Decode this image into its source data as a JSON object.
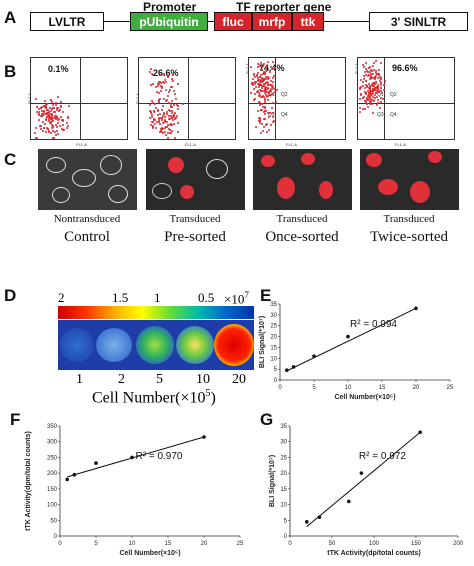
{
  "panel_labels": {
    "A": "A",
    "B": "B",
    "C": "C",
    "D": "D",
    "E": "E",
    "F": "F",
    "G": "G"
  },
  "construct": {
    "promoter_header": "Promoter",
    "reporter_header": "TF reporter gene",
    "ltr5": "LVLTR",
    "promoter": "pUbiquitin",
    "gene1": "fluc",
    "gene2": "mrfp",
    "gene3": "ttk",
    "ltr3": "3' SINLTR",
    "colors": {
      "promoter": "#3fae3f",
      "reporter": "#d8232a"
    }
  },
  "flow": [
    {
      "percent": "0.1%",
      "y_axis": "FL2-A",
      "x_axis": "FL1-A",
      "quadrants": []
    },
    {
      "percent": "26.6%",
      "y_axis": "FL2-A",
      "x_axis": "FL1-A",
      "quadrants": []
    },
    {
      "percent": "74.4%",
      "y_axis": "FL2-A",
      "x_axis": "FL1-A",
      "quadrants": [
        "Q1",
        "Q2",
        "Q3",
        "Q4"
      ]
    },
    {
      "percent": "96.6%",
      "y_axis": "FL2-A",
      "x_axis": "FL1-A",
      "quadrants": [
        "Q1",
        "Q2",
        "Q3",
        "Q4"
      ]
    }
  ],
  "micro": [
    {
      "line1": "Nontransduced",
      "line2": "Control"
    },
    {
      "line1": "Transduced",
      "line2": "Pre-sorted"
    },
    {
      "line1": "Transduced",
      "line2": "Once-sorted"
    },
    {
      "line1": "Transduced",
      "line2": "Twice-sorted"
    }
  ],
  "bli": {
    "scale_ticks": [
      "2",
      "1.5",
      "1",
      "0.5"
    ],
    "scale_unit": "×10",
    "scale_exp": "7",
    "well_labels": [
      "1",
      "2",
      "5",
      "10",
      "20"
    ],
    "xlabel": "Cell Number(×10",
    "xlabel_exp": "5",
    "xlabel_close": ")"
  },
  "chart_data": [
    {
      "panel": "E",
      "type": "scatter",
      "xlabel": "Cell Number(×10⁵)",
      "ylabel": "BLI Signal(*10⁷)",
      "annotation": "R² = 0.994",
      "x_ticks": [
        "0",
        "5",
        "10",
        "15",
        "20",
        "25"
      ],
      "y_ticks": [
        "0",
        "5",
        "10",
        "15",
        "20",
        "25",
        "30",
        "35"
      ],
      "xlim": [
        0,
        25
      ],
      "ylim": [
        0,
        35
      ],
      "points": [
        [
          1,
          4.5
        ],
        [
          2,
          6
        ],
        [
          5,
          11
        ],
        [
          10,
          20
        ],
        [
          20,
          33
        ]
      ],
      "fit": [
        [
          1,
          4.2
        ],
        [
          20,
          33
        ]
      ]
    },
    {
      "panel": "F",
      "type": "scatter",
      "xlabel": "Cell Number(×10⁵)",
      "ylabel": "tTK Activity(dpm/total counts)",
      "annotation": "R² = 0.970",
      "x_ticks": [
        "0",
        "5",
        "10",
        "15",
        "20",
        "25"
      ],
      "y_ticks": [
        "0",
        "50",
        "100",
        "150",
        "200",
        "250",
        "300",
        "350"
      ],
      "xlim": [
        0,
        25
      ],
      "ylim": [
        0,
        350
      ],
      "points": [
        [
          1,
          180
        ],
        [
          2,
          195
        ],
        [
          5,
          232
        ],
        [
          10,
          250
        ],
        [
          20,
          315
        ]
      ],
      "fit": [
        [
          1,
          188
        ],
        [
          20,
          315
        ]
      ]
    },
    {
      "panel": "G",
      "type": "scatter",
      "xlabel": "tTK Activity(dp/total counts)",
      "ylabel": "BLI Signal(*10⁷)",
      "annotation": "R² = 0.972",
      "x_ticks": [
        "0",
        "50",
        "100",
        "150",
        "200"
      ],
      "y_ticks": [
        "0",
        "5",
        "10",
        "15",
        "20",
        "25",
        "30",
        "35"
      ],
      "xlim": [
        0,
        200
      ],
      "ylim": [
        0,
        35
      ],
      "points": [
        [
          20,
          4.5
        ],
        [
          35,
          6
        ],
        [
          70,
          11
        ],
        [
          85,
          20
        ],
        [
          155,
          33
        ]
      ],
      "fit": [
        [
          20,
          3
        ],
        [
          155,
          33
        ]
      ]
    }
  ]
}
